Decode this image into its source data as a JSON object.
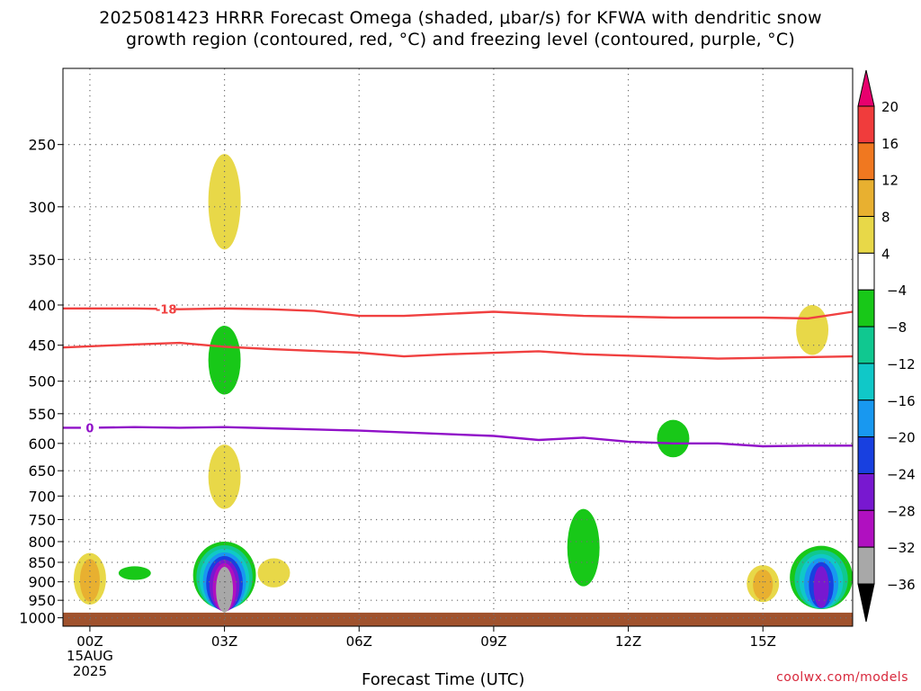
{
  "title_line1": "2025081423 HRRR Forecast Omega (shaded, μbar/s) for KFWA with dendritic snow",
  "title_line2": "growth region (contoured, red, °C) and freezing level (contoured, purple, °C)",
  "credit": "coolwx.com/models",
  "chart_data": {
    "type": "contour",
    "title": "2025081423 HRRR Forecast Omega (shaded, μbar/s) for KFWA with dendritic snow growth region (contoured, red, °C) and freezing level (contoured, purple, °C)",
    "xlabel": "Forecast Time (UTC)",
    "ylabel": "",
    "x_ticks": [
      "00Z",
      "03Z",
      "06Z",
      "09Z",
      "12Z",
      "15Z"
    ],
    "x_tick_hours": [
      0,
      3,
      6,
      9,
      12,
      15
    ],
    "x_date_label": [
      "15AUG",
      "2025"
    ],
    "xlim": [
      -0.6,
      17
    ],
    "y_ticks": [
      250,
      300,
      350,
      400,
      450,
      500,
      550,
      600,
      650,
      700,
      750,
      800,
      850,
      900,
      950,
      1000
    ],
    "y_scale": "log-pressure",
    "ylim": [
      1025,
      200
    ],
    "grid": true,
    "colorbar": {
      "labels": [
        20,
        16,
        12,
        8,
        4,
        -4,
        -8,
        -12,
        -16,
        -20,
        -24,
        -28,
        -32,
        -36
      ],
      "colors": [
        "#e8006e",
        "#f03c3c",
        "#f07820",
        "#e8b030",
        "#e8d848",
        "#ffffff",
        "#18c818",
        "#10c890",
        "#10c8c8",
        "#1898f0",
        "#1840e0",
        "#7818d0",
        "#b010c0",
        "#a8a8a8",
        "#000000"
      ]
    },
    "contours": [
      {
        "name": "-18",
        "color": "#f04040",
        "points": [
          [
            -0.6,
            404
          ],
          [
            1,
            404
          ],
          [
            2,
            405
          ],
          [
            3,
            404
          ],
          [
            4,
            405
          ],
          [
            5,
            407
          ],
          [
            6,
            413
          ],
          [
            7,
            413
          ],
          [
            9,
            408
          ],
          [
            11,
            413
          ],
          [
            12,
            414
          ],
          [
            13,
            415
          ],
          [
            15,
            415
          ],
          [
            16,
            416
          ],
          [
            17,
            408
          ]
        ]
      },
      {
        "name": "-12",
        "color": "#f04040",
        "points": [
          [
            -0.6,
            453
          ],
          [
            1,
            449
          ],
          [
            2,
            447
          ],
          [
            3,
            452
          ],
          [
            4,
            455
          ],
          [
            6,
            460
          ],
          [
            7,
            465
          ],
          [
            8,
            462
          ],
          [
            10,
            458
          ],
          [
            11,
            462
          ],
          [
            13,
            466
          ],
          [
            14,
            468
          ],
          [
            16,
            466
          ],
          [
            17,
            465
          ]
        ]
      },
      {
        "name": "0",
        "color": "#9010c8",
        "points": [
          [
            -0.6,
            573
          ],
          [
            0,
            573
          ],
          [
            1,
            572
          ],
          [
            2,
            573
          ],
          [
            3,
            572
          ],
          [
            4,
            574
          ],
          [
            5,
            576
          ],
          [
            6,
            578
          ],
          [
            8,
            584
          ],
          [
            9,
            587
          ],
          [
            10,
            594
          ],
          [
            11,
            590
          ],
          [
            12,
            597
          ],
          [
            13,
            600
          ],
          [
            14,
            600
          ],
          [
            15,
            605
          ],
          [
            16,
            604
          ],
          [
            17,
            604
          ]
        ]
      }
    ],
    "shaded_regions": [
      {
        "hour": 3.0,
        "p_top": 257,
        "p_bottom": 340,
        "value": 4
      },
      {
        "hour": 3.0,
        "p_top": 425,
        "p_bottom": 520,
        "value": -4
      },
      {
        "hour": 3.0,
        "p_top": 602,
        "p_bottom": 727,
        "value": 4
      },
      {
        "hour": 3.0,
        "p_top": 800,
        "p_bottom": 975,
        "value": -36
      },
      {
        "hour": 0.0,
        "p_top": 827,
        "p_bottom": 962,
        "value": 8
      },
      {
        "hour": 1.0,
        "p_top": 860,
        "p_bottom": 895,
        "value": -4
      },
      {
        "hour": 4.1,
        "p_top": 840,
        "p_bottom": 915,
        "value": 4
      },
      {
        "hour": 11.0,
        "p_top": 727,
        "p_bottom": 912,
        "value": -4
      },
      {
        "hour": 13.0,
        "p_top": 560,
        "p_bottom": 625,
        "value": -4
      },
      {
        "hour": 15.0,
        "p_top": 857,
        "p_bottom": 955,
        "value": 8
      },
      {
        "hour": 16.1,
        "p_top": 400,
        "p_bottom": 463,
        "value": 4
      },
      {
        "hour": 16.3,
        "p_top": 810,
        "p_bottom": 975,
        "value": -24
      }
    ],
    "ground_level_hPa": 985
  }
}
